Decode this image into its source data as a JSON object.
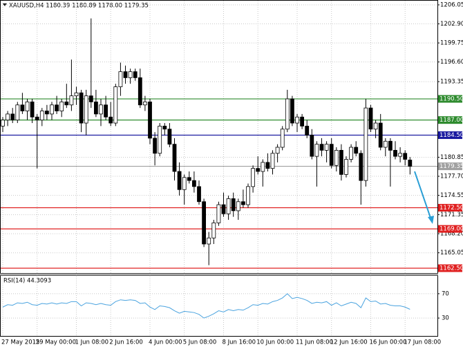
{
  "chart_data": [
    {
      "type": "candlestick",
      "title": "XAUUSD,H4  1180.39 1180.89 1178.00 1179.35",
      "categories": [
        "27 May 2015",
        null,
        null,
        null,
        null,
        null,
        null,
        "29 May 00:00",
        null,
        null,
        null,
        null,
        null,
        null,
        null,
        "1 Jun 08:00",
        null,
        null,
        null,
        null,
        null,
        null,
        "2 Jun 16:00",
        null,
        null,
        null,
        null,
        null,
        null,
        null,
        "4 Jun 00:00",
        null,
        null,
        null,
        null,
        null,
        null,
        "5 Jun 08:00",
        null,
        null,
        null,
        null,
        null,
        null,
        null,
        "8 Jun 16:00",
        null,
        null,
        null,
        null,
        null,
        null,
        "10 Jun 00:00",
        null,
        null,
        null,
        null,
        null,
        null,
        null,
        "11 Jun 08:00",
        null,
        null,
        null,
        null,
        null,
        null,
        "12 Jun 16:00",
        null,
        null,
        null,
        null,
        null,
        null,
        null,
        "16 Jun 00:00",
        null,
        null,
        null,
        null,
        null,
        null,
        "17 Jun 08:00",
        null
      ],
      "candles": [
        [
          1186.0,
          1187.5,
          1185.0,
          1187.0
        ],
        [
          1187.0,
          1188.5,
          1186.0,
          1188.0
        ],
        [
          1188.0,
          1189.0,
          1186.5,
          1187.0
        ],
        [
          1187.0,
          1190.0,
          1186.5,
          1189.5
        ],
        [
          1189.5,
          1191.5,
          1188.0,
          1188.5
        ],
        [
          1188.5,
          1190.5,
          1187.0,
          1190.0
        ],
        [
          1190.0,
          1190.5,
          1186.5,
          1187.5
        ],
        [
          1187.5,
          1188.0,
          1179.0,
          1187.0
        ],
        [
          1187.0,
          1189.0,
          1186.0,
          1188.5
        ],
        [
          1188.5,
          1189.5,
          1187.0,
          1188.0
        ],
        [
          1188.0,
          1190.0,
          1187.0,
          1189.5
        ],
        [
          1189.5,
          1191.0,
          1188.0,
          1188.5
        ],
        [
          1188.5,
          1190.5,
          1187.5,
          1190.0
        ],
        [
          1190.0,
          1193.0,
          1189.0,
          1189.5
        ],
        [
          1189.5,
          1197.0,
          1188.5,
          1191.0
        ],
        [
          1191.0,
          1192.5,
          1189.5,
          1191.5
        ],
        [
          1191.5,
          1192.0,
          1185.0,
          1186.5
        ],
        [
          1186.5,
          1192.0,
          1184.5,
          1191.0
        ],
        [
          1191.0,
          1203.8,
          1189.0,
          1190.0
        ],
        [
          1190.0,
          1192.0,
          1187.5,
          1188.0
        ],
        [
          1188.0,
          1190.5,
          1186.0,
          1189.5
        ],
        [
          1189.5,
          1191.0,
          1187.0,
          1187.5
        ],
        [
          1187.5,
          1190.0,
          1186.0,
          1186.5
        ],
        [
          1186.5,
          1193.0,
          1186.0,
          1192.5
        ],
        [
          1192.5,
          1196.5,
          1191.0,
          1195.0
        ],
        [
          1195.0,
          1196.0,
          1193.0,
          1194.0
        ],
        [
          1194.0,
          1195.5,
          1193.0,
          1195.0
        ],
        [
          1195.0,
          1195.5,
          1193.5,
          1194.0
        ],
        [
          1194.0,
          1195.5,
          1189.0,
          1189.5
        ],
        [
          1189.5,
          1191.0,
          1188.5,
          1190.0
        ],
        [
          1190.0,
          1190.5,
          1183.0,
          1184.0
        ],
        [
          1184.0,
          1185.0,
          1179.5,
          1181.5
        ],
        [
          1181.5,
          1186.5,
          1181.0,
          1186.0
        ],
        [
          1186.0,
          1186.5,
          1184.5,
          1185.5
        ],
        [
          1185.5,
          1186.5,
          1182.5,
          1183.0
        ],
        [
          1183.0,
          1184.0,
          1177.0,
          1178.5
        ],
        [
          1178.5,
          1180.0,
          1174.5,
          1175.5
        ],
        [
          1175.5,
          1178.0,
          1173.0,
          1177.5
        ],
        [
          1177.5,
          1178.5,
          1176.5,
          1177.0
        ],
        [
          1177.0,
          1178.5,
          1175.0,
          1176.0
        ],
        [
          1176.0,
          1177.0,
          1173.0,
          1173.5
        ],
        [
          1173.5,
          1174.0,
          1166.0,
          1166.5
        ],
        [
          1166.5,
          1168.5,
          1163.0,
          1167.5
        ],
        [
          1167.5,
          1170.5,
          1166.5,
          1170.0
        ],
        [
          1170.0,
          1173.5,
          1169.5,
          1173.0
        ],
        [
          1173.0,
          1175.0,
          1171.0,
          1171.5
        ],
        [
          1171.5,
          1174.5,
          1170.5,
          1174.0
        ],
        [
          1174.0,
          1175.0,
          1171.0,
          1172.0
        ],
        [
          1172.0,
          1174.0,
          1170.5,
          1173.5
        ],
        [
          1173.5,
          1175.5,
          1172.5,
          1173.0
        ],
        [
          1173.0,
          1176.5,
          1172.5,
          1176.0
        ],
        [
          1176.0,
          1179.5,
          1175.0,
          1179.0
        ],
        [
          1179.0,
          1181.0,
          1178.0,
          1178.5
        ],
        [
          1178.5,
          1180.5,
          1176.0,
          1180.0
        ],
        [
          1180.0,
          1181.5,
          1178.5,
          1179.0
        ],
        [
          1179.0,
          1182.0,
          1178.0,
          1181.5
        ],
        [
          1181.5,
          1183.0,
          1180.0,
          1182.5
        ],
        [
          1182.5,
          1186.0,
          1182.0,
          1185.5
        ],
        [
          1185.5,
          1192.0,
          1185.0,
          1190.5
        ],
        [
          1190.5,
          1191.0,
          1186.0,
          1186.5
        ],
        [
          1186.5,
          1188.0,
          1185.0,
          1187.5
        ],
        [
          1187.5,
          1188.0,
          1185.5,
          1186.0
        ],
        [
          1186.0,
          1187.0,
          1184.0,
          1184.5
        ],
        [
          1184.5,
          1185.5,
          1180.5,
          1181.0
        ],
        [
          1181.0,
          1183.5,
          1176.0,
          1183.0
        ],
        [
          1183.0,
          1184.0,
          1181.0,
          1182.0
        ],
        [
          1182.0,
          1183.5,
          1180.0,
          1183.0
        ],
        [
          1183.0,
          1184.0,
          1179.0,
          1179.5
        ],
        [
          1179.5,
          1182.5,
          1178.5,
          1182.0
        ],
        [
          1182.0,
          1183.0,
          1177.0,
          1178.0
        ],
        [
          1178.0,
          1181.0,
          1177.5,
          1180.5
        ],
        [
          1180.5,
          1183.0,
          1180.0,
          1182.5
        ],
        [
          1182.5,
          1183.5,
          1181.0,
          1181.5
        ],
        [
          1181.5,
          1182.0,
          1173.0,
          1177.0
        ],
        [
          1177.0,
          1190.5,
          1176.0,
          1189.0
        ],
        [
          1189.0,
          1189.5,
          1185.0,
          1185.5
        ],
        [
          1185.5,
          1187.0,
          1184.0,
          1186.5
        ],
        [
          1186.5,
          1188.0,
          1182.0,
          1182.5
        ],
        [
          1182.5,
          1184.0,
          1181.0,
          1183.5
        ],
        [
          1183.5,
          1184.0,
          1176.0,
          1182.0
        ],
        [
          1182.0,
          1183.5,
          1180.5,
          1181.0
        ],
        [
          1181.0,
          1182.5,
          1180.0,
          1181.5
        ],
        [
          1181.5,
          1182.0,
          1179.5,
          1180.5
        ],
        [
          1180.39,
          1180.89,
          1178.0,
          1179.35
        ]
      ],
      "ylim": [
        1161.7,
        1206.85
      ],
      "yticks": [
        1206.05,
        {
          "value": 1202.9,
          "label": "1202.90"
        },
        1199.75,
        {
          "value": 1196.6,
          "label": "1196.60"
        },
        1193.35,
        1180.85,
        {
          "value": 1177.7,
          "label": "1177.70"
        },
        1174.55,
        1171.35,
        {
          "value": 1168.2,
          "label": "1168.20"
        },
        1165.05
      ],
      "levels": [
        {
          "value": 1190.5,
          "label": "1190.50",
          "color": "#2e8b2e"
        },
        {
          "value": 1187.0,
          "label": "1187.00",
          "color": "#2e8b2e"
        },
        {
          "value": 1184.5,
          "label": "1184.50",
          "color": "#1a1aa0"
        },
        {
          "value": 1179.35,
          "label": "1179.35",
          "color": "#a0a0a0"
        },
        {
          "value": 1172.5,
          "label": "1172.50",
          "color": "#e02020"
        },
        {
          "value": 1169.0,
          "label": "1169.00",
          "color": "#e02020"
        },
        {
          "value": 1162.5,
          "label": "1162.50",
          "color": "#e02020"
        }
      ],
      "grid": true
    },
    {
      "type": "line",
      "title": "RSI(14) 44.3093",
      "color": "#4aa3df",
      "values": [
        48,
        52,
        51,
        55,
        54,
        56,
        52,
        51,
        54,
        53,
        55,
        53,
        55,
        54,
        57,
        57,
        50,
        55,
        54,
        52,
        54,
        52,
        51,
        57,
        60,
        59,
        60,
        59,
        54,
        55,
        48,
        44,
        50,
        49,
        47,
        42,
        38,
        41,
        40,
        39,
        36,
        30,
        33,
        37,
        42,
        40,
        44,
        42,
        44,
        43,
        47,
        52,
        51,
        54,
        53,
        57,
        59,
        63,
        70,
        62,
        64,
        62,
        59,
        54,
        56,
        55,
        57,
        51,
        55,
        50,
        53,
        56,
        54,
        47,
        63,
        57,
        58,
        53,
        54,
        51,
        50,
        50,
        48,
        44.3093
      ],
      "ylim": [
        0,
        100
      ],
      "yticks": [
        70,
        30
      ],
      "grid": true
    }
  ]
}
